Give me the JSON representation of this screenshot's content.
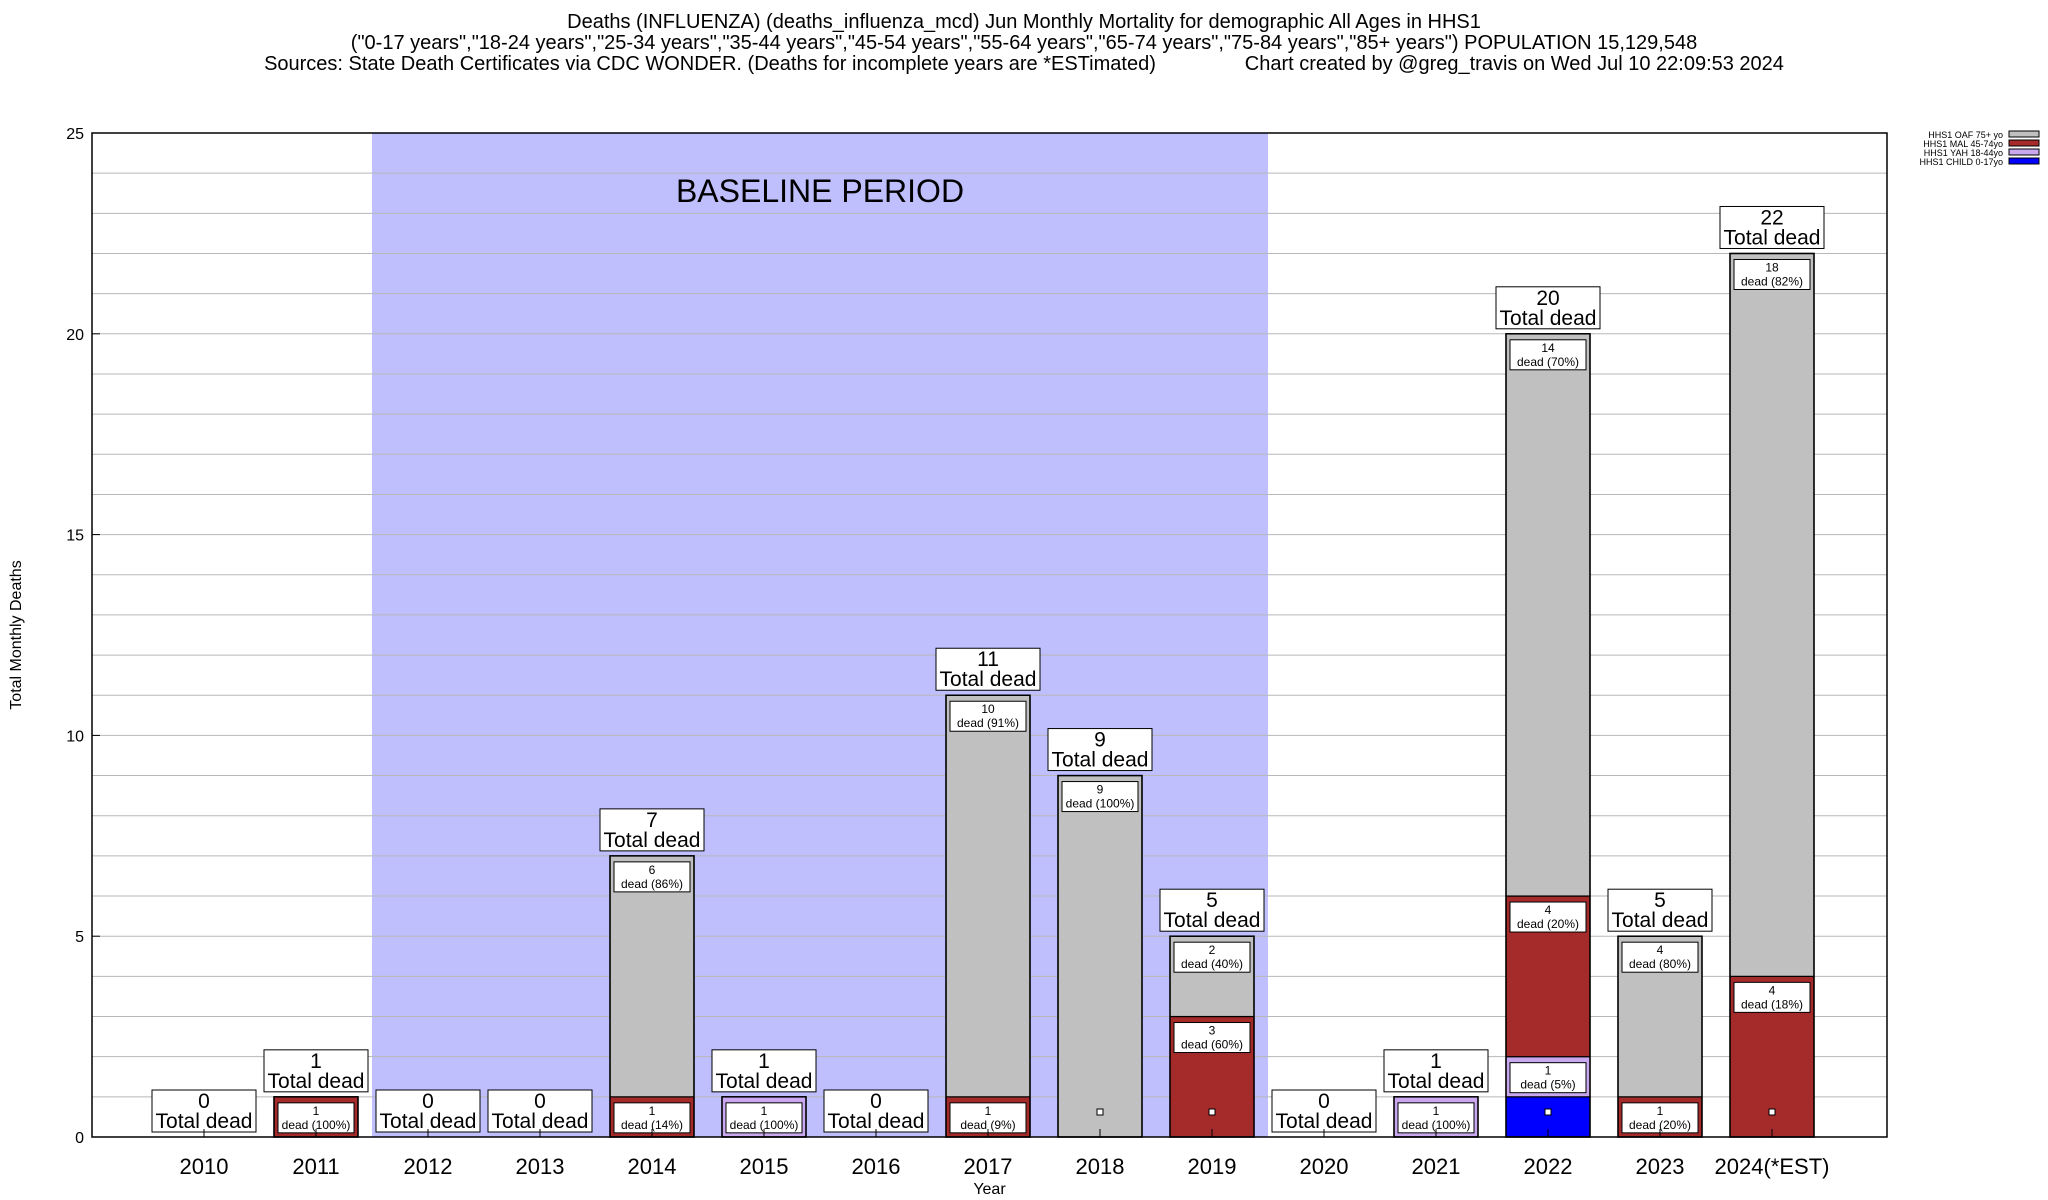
{
  "titles": {
    "line1": "Deaths (INFLUENZA) (deaths_influenza_mcd) Jun Monthly Mortality for demographic All Ages in HHS1",
    "line2": "(\"0-17 years\",\"18-24 years\",\"25-34 years\",\"35-44 years\",\"45-54 years\",\"55-64 years\",\"65-74 years\",\"75-84 years\",\"85+ years\") POPULATION 15,129,548",
    "line3_left": "Sources: State Death Certificates via CDC WONDER. (Deaths for incomplete years are *ESTimated)",
    "line3_right": "Chart created by @greg_travis on Wed Jul 10 22:09:53 2024"
  },
  "chart_data": {
    "type": "bar",
    "stacked": true,
    "xlabel": "Year",
    "ylabel": "Total Monthly Deaths",
    "ylim": [
      0,
      25
    ],
    "yticks": [
      0,
      5,
      10,
      15,
      20,
      25
    ],
    "minor_grid_step": 1,
    "grid": true,
    "legend_position": "top-right",
    "categories": [
      "2010",
      "2011",
      "2012",
      "2013",
      "2014",
      "2015",
      "2016",
      "2017",
      "2018",
      "2019",
      "2020",
      "2021",
      "2022",
      "2023",
      "2024(*EST)"
    ],
    "totals": [
      0,
      1,
      0,
      0,
      7,
      1,
      0,
      11,
      9,
      5,
      0,
      1,
      20,
      5,
      22
    ],
    "total_label": "Total dead",
    "segment_label": "dead",
    "series": [
      {
        "name": "HHS1 CHILD 0-17yo",
        "color": "#0000ff",
        "values": [
          0,
          0,
          0,
          0,
          0,
          0,
          0,
          0,
          0,
          0,
          0,
          0,
          1,
          0,
          0
        ]
      },
      {
        "name": "HHS1 YAH 18-44yo",
        "color": "#c9a8ef",
        "values": [
          0,
          0,
          0,
          0,
          0,
          1,
          0,
          0,
          0,
          0,
          0,
          1,
          1,
          0,
          0
        ]
      },
      {
        "name": "HHS1 MAL 45-74yo",
        "color": "#a52a2a",
        "values": [
          0,
          1,
          0,
          0,
          1,
          0,
          0,
          1,
          0,
          3,
          0,
          0,
          4,
          1,
          4
        ]
      },
      {
        "name": "HHS1 OAF 75+ yo",
        "color": "#c0c0c0",
        "values": [
          0,
          0,
          0,
          0,
          6,
          0,
          0,
          10,
          9,
          2,
          0,
          0,
          14,
          4,
          18
        ]
      }
    ],
    "segment_labels": [
      {
        "cat": 1,
        "series": 2,
        "count": "1",
        "pct": "(100%)"
      },
      {
        "cat": 4,
        "series": 2,
        "count": "1",
        "pct": "(14%)"
      },
      {
        "cat": 4,
        "series": 3,
        "count": "6",
        "pct": "(86%)"
      },
      {
        "cat": 5,
        "series": 1,
        "count": "1",
        "pct": "(100%)"
      },
      {
        "cat": 7,
        "series": 2,
        "count": "1",
        "pct": "(9%)"
      },
      {
        "cat": 7,
        "series": 3,
        "count": "10",
        "pct": "(91%)"
      },
      {
        "cat": 8,
        "series": 3,
        "count": "9",
        "pct": "(100%)"
      },
      {
        "cat": 9,
        "series": 2,
        "count": "3",
        "pct": "(60%)"
      },
      {
        "cat": 9,
        "series": 3,
        "count": "2",
        "pct": "(40%)"
      },
      {
        "cat": 11,
        "series": 1,
        "count": "1",
        "pct": "(100%)"
      },
      {
        "cat": 12,
        "series": 1,
        "count": "1",
        "pct": "(5%)"
      },
      {
        "cat": 12,
        "series": 2,
        "count": "4",
        "pct": "(20%)"
      },
      {
        "cat": 12,
        "series": 3,
        "count": "14",
        "pct": "(70%)"
      },
      {
        "cat": 13,
        "series": 2,
        "count": "1",
        "pct": "(20%)"
      },
      {
        "cat": 13,
        "series": 3,
        "count": "4",
        "pct": "(80%)"
      },
      {
        "cat": 14,
        "series": 2,
        "count": "4",
        "pct": "(18%)"
      },
      {
        "cat": 14,
        "series": 3,
        "count": "18",
        "pct": "(82%)"
      }
    ],
    "baseline_period": {
      "label": "BASELINE PERIOD",
      "from": "2012",
      "to": "2019",
      "color": "#bfbffe"
    }
  }
}
